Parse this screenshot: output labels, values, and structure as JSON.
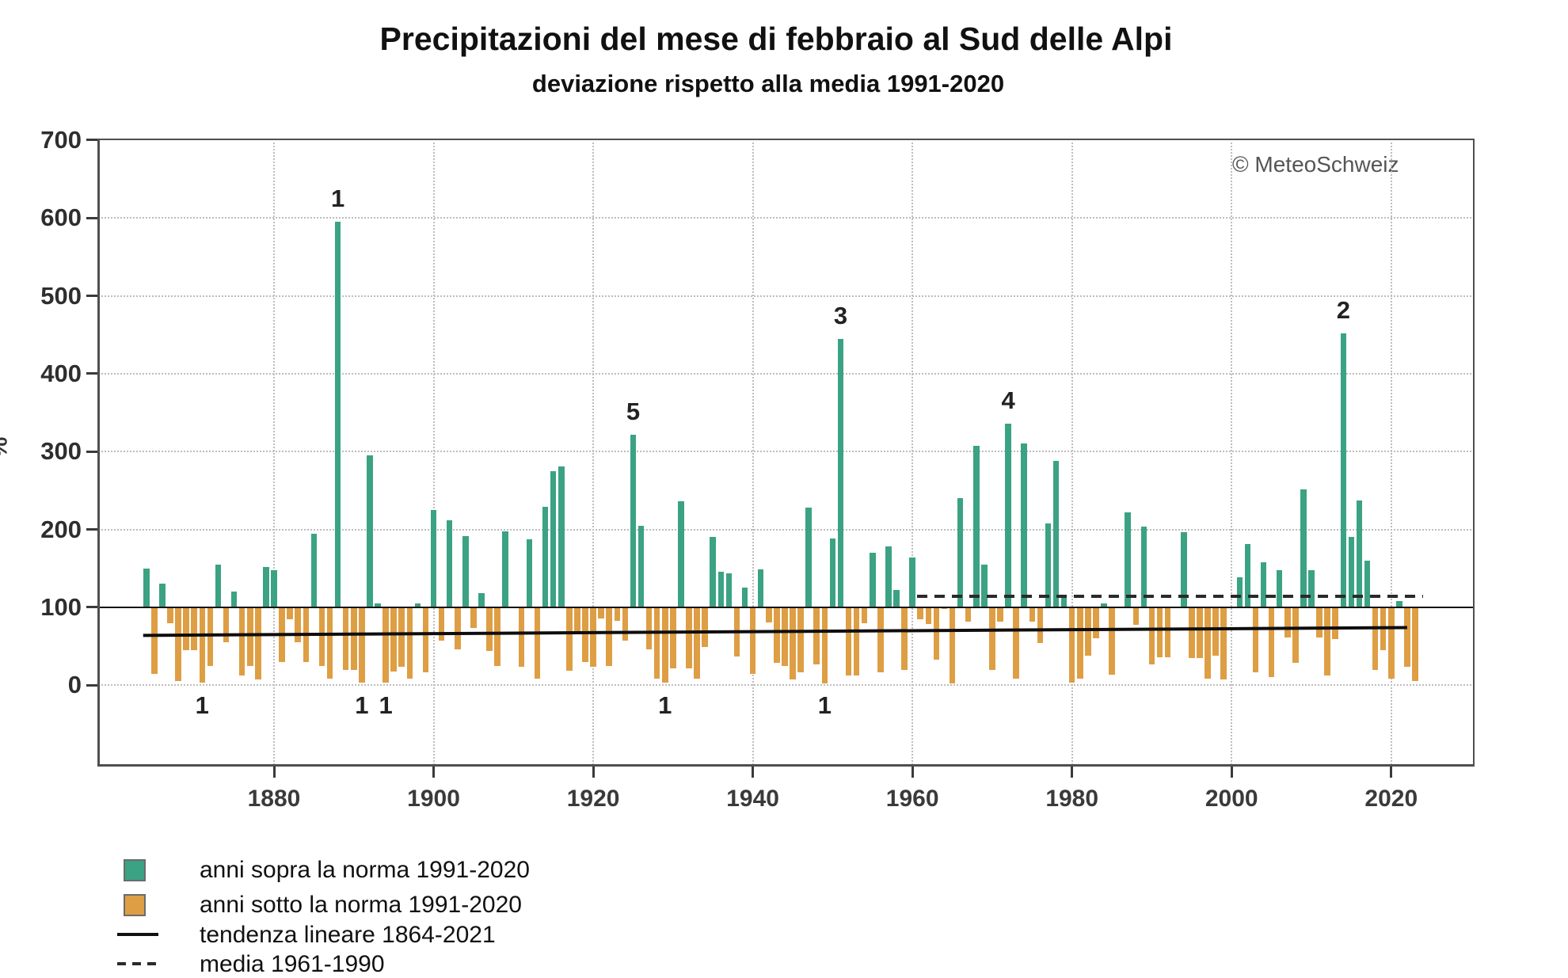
{
  "page": {
    "copyright": "© MeteoSchweiz"
  },
  "chart_data": {
    "type": "bar",
    "title": "Precipitazioni del mese di febbraio al Sud delle Alpi",
    "subtitle": "deviazione rispetto alla media 1991-2020",
    "ylabel": "%",
    "unit": "% of 1991-2020 norm",
    "baseline": 100,
    "ylim": [
      -100,
      700
    ],
    "grid": "dotted",
    "y_ticks": [
      0,
      100,
      200,
      300,
      400,
      500,
      600,
      700
    ],
    "x_ticks": [
      1880,
      1900,
      1920,
      1940,
      1960,
      1980,
      2000,
      2020
    ],
    "start_year": 1864,
    "end_year": 2023,
    "values": [
      150,
      15,
      130,
      80,
      5,
      45,
      45,
      3,
      25,
      155,
      55,
      120,
      12,
      25,
      7,
      152,
      148,
      30,
      85,
      55,
      30,
      195,
      25,
      8,
      595,
      20,
      20,
      3,
      295,
      105,
      3,
      18,
      24,
      8,
      105,
      17,
      225,
      57,
      212,
      46,
      192,
      74,
      118,
      44,
      25,
      198,
      100,
      24,
      187,
      8,
      229,
      275,
      281,
      19,
      69,
      30,
      24,
      86,
      25,
      83,
      57,
      322,
      205,
      46,
      8,
      3,
      22,
      236,
      22,
      8,
      49,
      190,
      146,
      144,
      37,
      125,
      15,
      149,
      81,
      29,
      25,
      7,
      17,
      228,
      27,
      2,
      188,
      445,
      12,
      13,
      80,
      170,
      17,
      178,
      122,
      20,
      164,
      85,
      79,
      33,
      98,
      2,
      240,
      82,
      307,
      155,
      20,
      82,
      336,
      8,
      310,
      82,
      54,
      208,
      288,
      115,
      3,
      8,
      38,
      60,
      105,
      14,
      100,
      222,
      78,
      204,
      27,
      36,
      36,
      100,
      197,
      35,
      35,
      8,
      38,
      7,
      100,
      139,
      181,
      17,
      158,
      10,
      148,
      61,
      29,
      252,
      148,
      61,
      12,
      59,
      452,
      190,
      237,
      160,
      20,
      45,
      8,
      108,
      24,
      5
    ],
    "colors": {
      "above": "#3BA283",
      "below": "#DE9E44"
    },
    "annotations_above": [
      {
        "year": 1888,
        "label": "1"
      },
      {
        "year": 1925,
        "label": "5"
      },
      {
        "year": 1951,
        "label": "3"
      },
      {
        "year": 1972,
        "label": "4"
      },
      {
        "year": 2014,
        "label": "2"
      }
    ],
    "annotations_below": [
      {
        "year": 1871,
        "label": "1"
      },
      {
        "year": 1891,
        "label": "1"
      },
      {
        "year": 1894,
        "label": "1"
      },
      {
        "year": 1929,
        "label": "1"
      },
      {
        "year": 1949,
        "label": "1"
      }
    ],
    "trend_line": {
      "label": "tendenza lineare 1864-2021",
      "from_year": 1864,
      "from_value": 64,
      "to_year": 2021,
      "to_value": 74
    },
    "mean_line": {
      "label": "media 1961-1990",
      "from_year": 1961,
      "to_year": 2023,
      "value": 114
    },
    "legend": [
      {
        "swatch": "square-above",
        "label": "anni sopra la norma 1991-2020"
      },
      {
        "swatch": "square-below",
        "label": "anni sotto la norma 1991-2020"
      },
      {
        "swatch": "line-solid",
        "label": "tendenza lineare 1864-2021"
      },
      {
        "swatch": "line-dashed",
        "label": "media 1961-1990"
      }
    ]
  }
}
